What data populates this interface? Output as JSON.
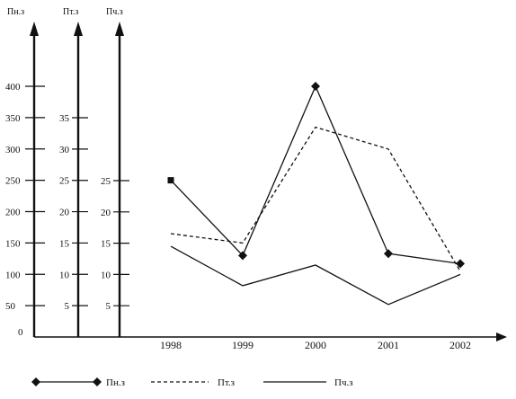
{
  "chart_data": {
    "type": "line",
    "categories": [
      "1998",
      "1999",
      "2000",
      "2001",
      "2002"
    ],
    "axes": [
      {
        "key": "pn",
        "title": "Пн.з",
        "ticks": [
          0,
          50,
          100,
          150,
          200,
          250,
          300,
          350,
          400
        ],
        "ylim": [
          0,
          400
        ]
      },
      {
        "key": "pt",
        "title": "Пт.з",
        "ticks": [
          5,
          10,
          15,
          20,
          25,
          30,
          35
        ],
        "ylim": [
          0,
          40
        ]
      },
      {
        "key": "pch",
        "title": "Пч.з",
        "ticks": [
          5,
          10,
          15,
          20,
          25
        ],
        "ylim": [
          0,
          40
        ]
      }
    ],
    "series": [
      {
        "name": "Пн.з",
        "axis": "pn",
        "style": "solid-markers",
        "values": [
          250,
          130,
          400,
          133,
          117
        ]
      },
      {
        "name": "Пт.з",
        "axis": "pt",
        "style": "dashed",
        "values": [
          16.5,
          15,
          33.5,
          30,
          10.5
        ]
      },
      {
        "name": "Пч.з",
        "axis": "pch",
        "style": "solid",
        "values": [
          14.5,
          8.2,
          11.5,
          5.2,
          10
        ]
      }
    ],
    "grid": false,
    "legend": "bottom",
    "color": "#111111"
  }
}
